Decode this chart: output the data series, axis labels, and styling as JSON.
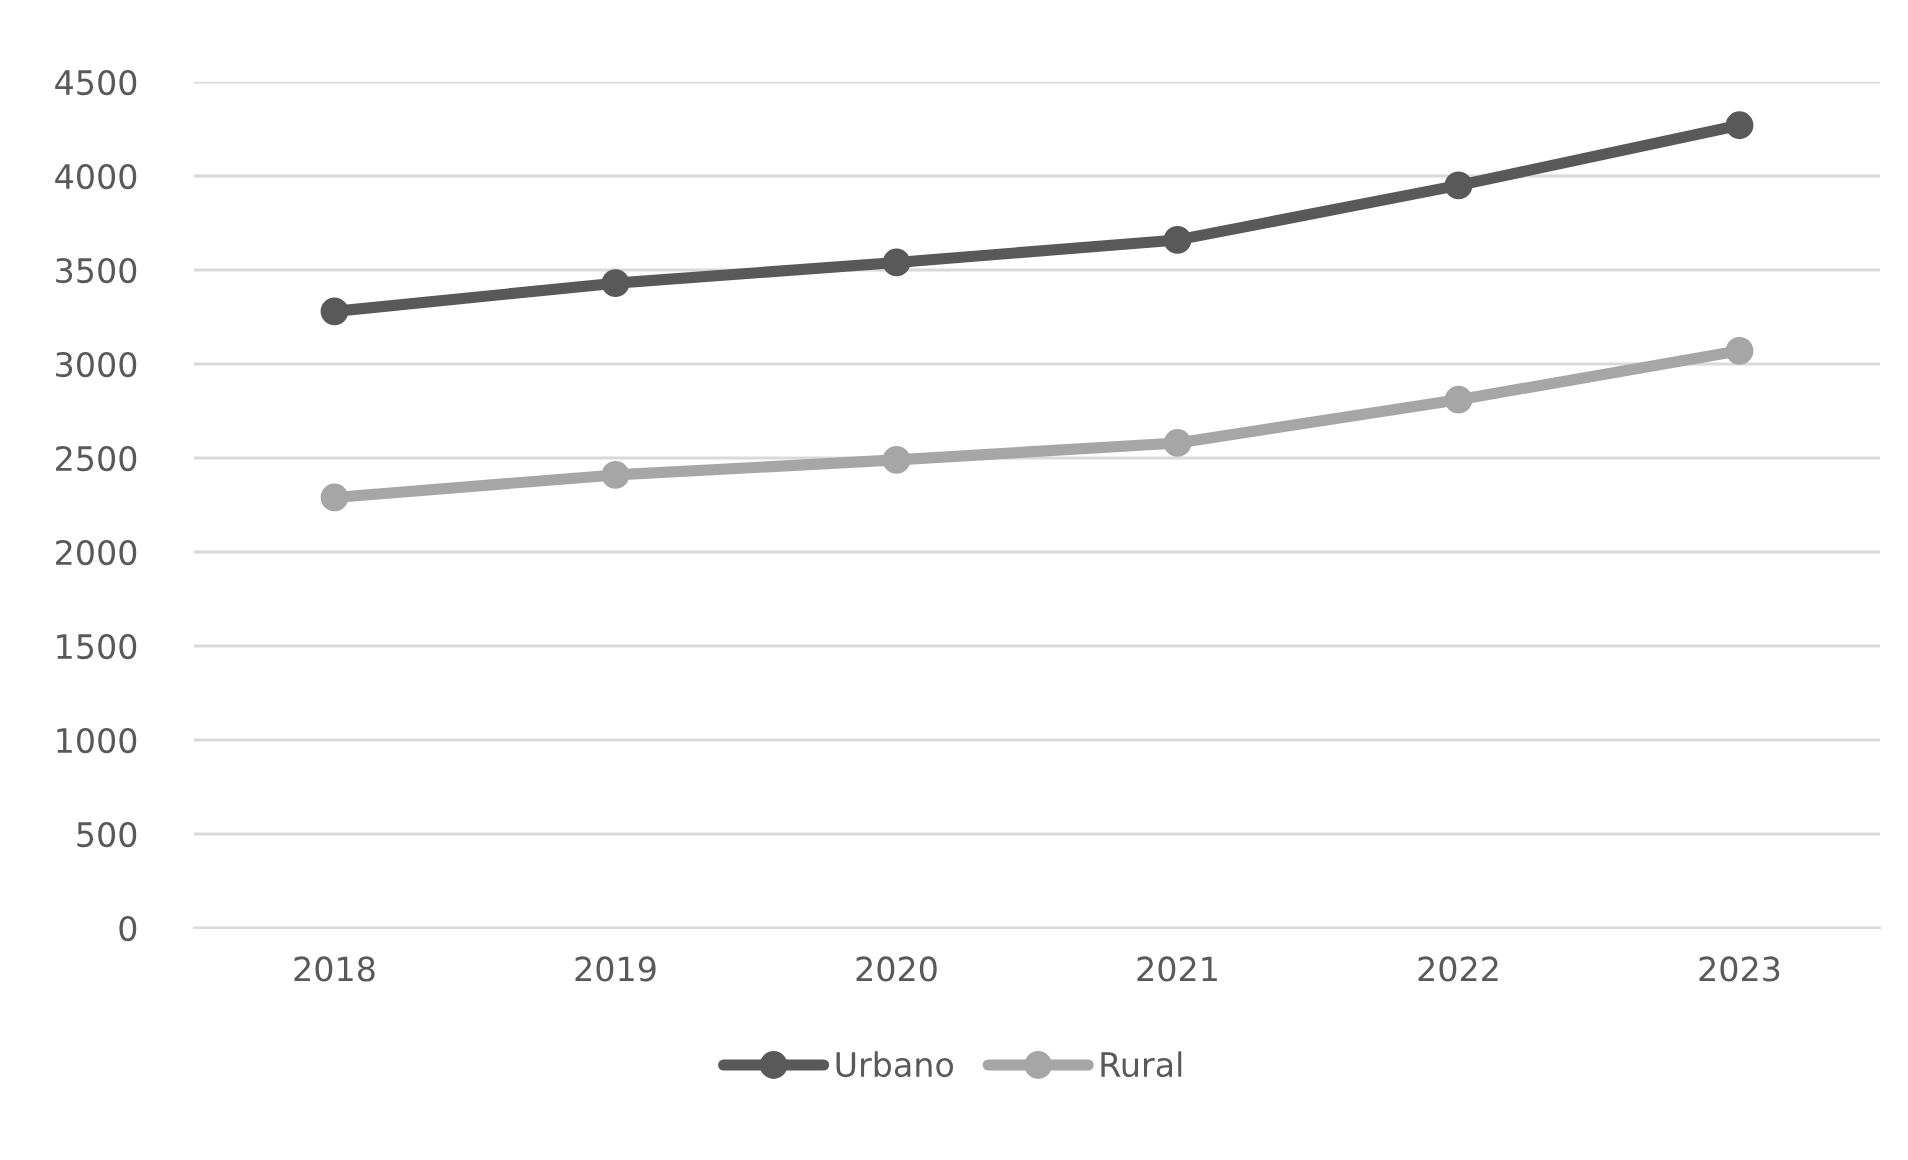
{
  "chart_data": {
    "type": "line",
    "categories": [
      "2018",
      "2019",
      "2020",
      "2021",
      "2022",
      "2023"
    ],
    "series": [
      {
        "name": "Urbano",
        "color": "#595959",
        "values": [
          3280,
          3430,
          3540,
          3660,
          3950,
          4270
        ]
      },
      {
        "name": "Rural",
        "color": "#a6a6a6",
        "values": [
          2290,
          2410,
          2490,
          2580,
          2810,
          3070
        ]
      }
    ],
    "ylim": [
      0,
      4500
    ],
    "yticks": [
      0,
      500,
      1000,
      1500,
      2000,
      2500,
      3000,
      3500,
      4000,
      4500
    ],
    "grid": "y",
    "legend": "bottom",
    "marker": "circle",
    "line_style": "solid"
  }
}
